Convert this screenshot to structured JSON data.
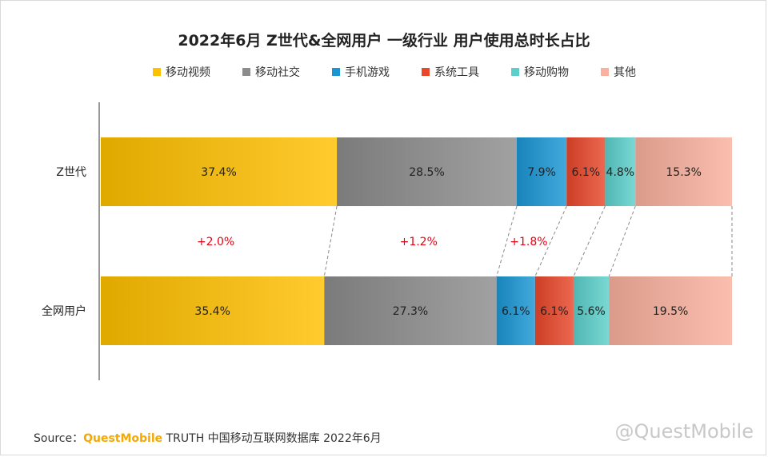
{
  "chart_data": {
    "type": "bar",
    "stacked": true,
    "orientation": "horizontal",
    "title": "2022年6月 Z世代&全网用户 一级行业 用户使用总时长占比",
    "categories": [
      "Z世代",
      "全网用户"
    ],
    "series": [
      {
        "name": "移动视频",
        "values": [
          37.4,
          35.4
        ],
        "labels": [
          "37.4%",
          "35.4%"
        ],
        "color": "#ffc000"
      },
      {
        "name": "移动社交",
        "values": [
          28.5,
          27.3
        ],
        "labels": [
          "28.5%",
          "27.3%"
        ],
        "color": "#8c8c8c"
      },
      {
        "name": "手机游戏",
        "values": [
          7.9,
          6.1
        ],
        "labels": [
          "7.9%",
          "6.1%"
        ],
        "color": "#1a96d4"
      },
      {
        "name": "系统工具",
        "values": [
          6.1,
          6.1
        ],
        "labels": [
          "6.1%",
          "6.1%"
        ],
        "color": "#e8472a"
      },
      {
        "name": "移动购物",
        "values": [
          4.8,
          5.6
        ],
        "labels": [
          "4.8%",
          "5.6%"
        ],
        "color": "#5ccfca"
      },
      {
        "name": "其他",
        "values": [
          15.3,
          19.5
        ],
        "labels": [
          "15.3%",
          "19.5%"
        ],
        "color": "#f9b09e"
      }
    ],
    "differences": [
      {
        "series": "移动视频",
        "label": "+2.0%"
      },
      {
        "series": "移动社交",
        "label": "+1.2%"
      },
      {
        "series": "手机游戏",
        "label": "+1.8%"
      }
    ],
    "diff_color": "#e60012",
    "legend_position": "top",
    "grid": false
  },
  "source": {
    "prefix": "Source：",
    "brand": "QuestMobile",
    "rest": "TRUTH 中国移动互联网数据库 2022年6月"
  },
  "watermark": "@QuestMobile"
}
